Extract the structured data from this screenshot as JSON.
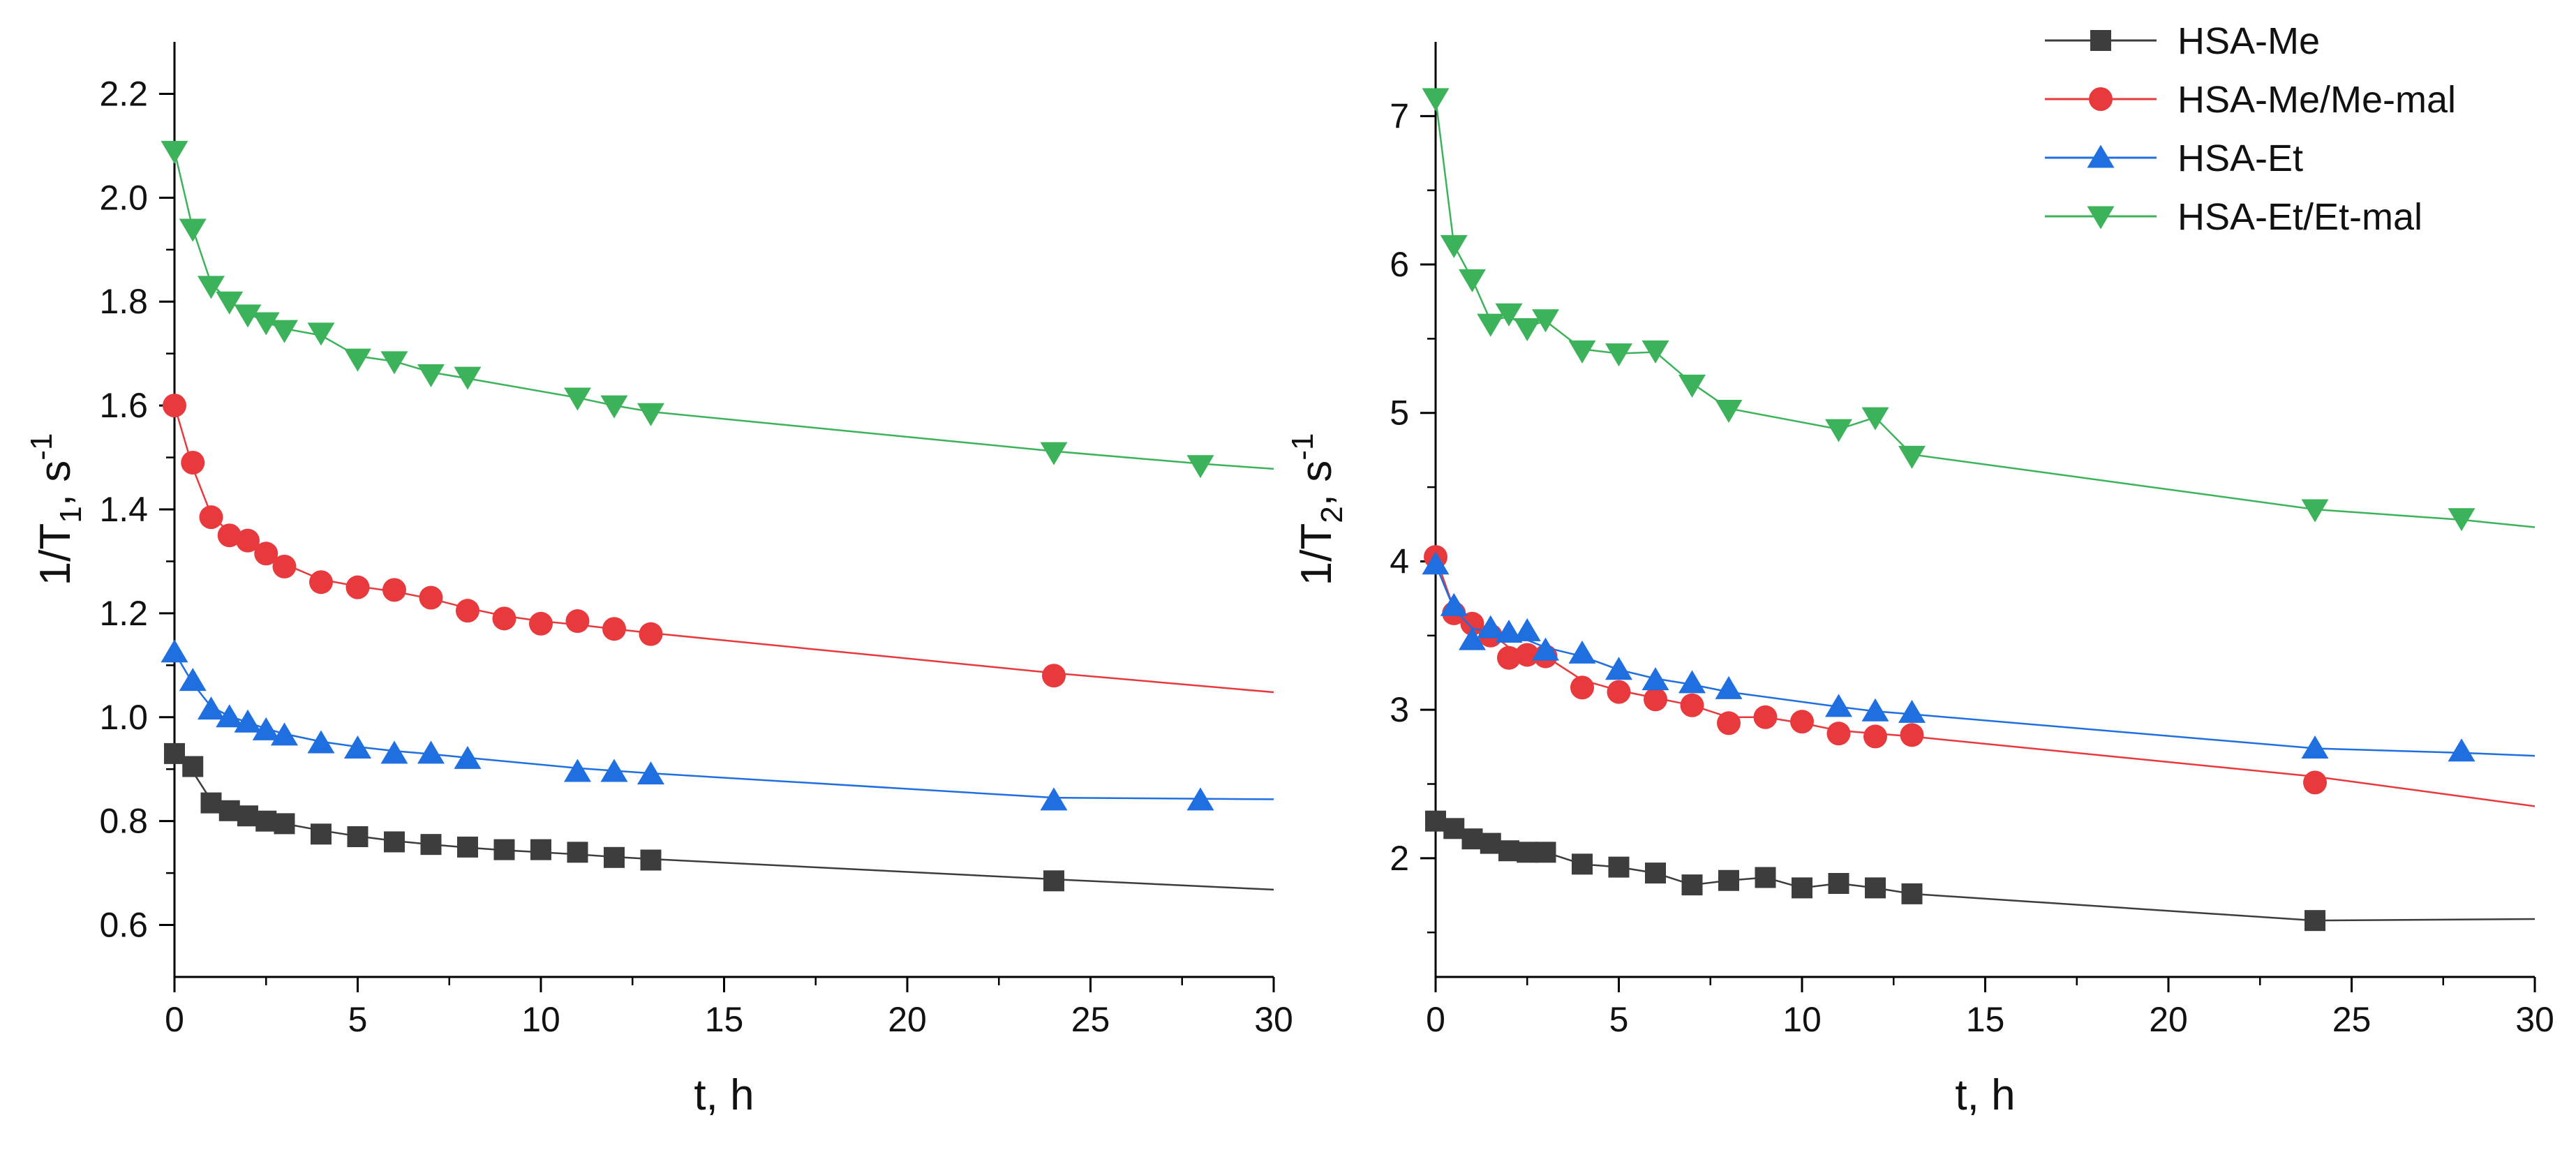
{
  "chart_data": [
    {
      "type": "line",
      "panel": "left",
      "title": "",
      "xlabel": "t, h",
      "ylabel": "1/T1, s-1",
      "ylabel_parts": {
        "main": "1/T",
        "sub": "1",
        "mid": ", s",
        "sup": "-1"
      },
      "xlim": [
        0,
        30
      ],
      "ylim": [
        0.5,
        2.3
      ],
      "xticks": [
        0,
        5,
        10,
        15,
        20,
        25,
        30
      ],
      "yticks": [
        0.6,
        0.8,
        1.0,
        1.2,
        1.4,
        1.6,
        1.8,
        2.0,
        2.2
      ],
      "ytick_labels": [
        "0.6",
        "0.8",
        "1.0",
        "1.2",
        "1.4",
        "1.6",
        "1.8",
        "2.0",
        "2.2"
      ],
      "series": [
        {
          "name": "HSA-Me",
          "color": "#3d3d3d",
          "marker": "square",
          "x": [
            0,
            0.5,
            1,
            1.5,
            2,
            2.5,
            3,
            4,
            5,
            6,
            7,
            8,
            9,
            10,
            11,
            12,
            13,
            24
          ],
          "y": [
            0.93,
            0.905,
            0.835,
            0.82,
            0.81,
            0.8,
            0.795,
            0.775,
            0.77,
            0.76,
            0.755,
            0.75,
            0.745,
            0.745,
            0.74,
            0.73,
            0.725,
            0.685
          ],
          "fit_x": [
            0,
            0.5,
            1,
            1.5,
            2,
            2.5,
            3,
            4,
            5,
            6,
            7,
            8,
            9,
            10,
            11,
            12,
            13,
            24,
            30
          ],
          "fit_y": [
            0.93,
            0.895,
            0.84,
            0.825,
            0.812,
            0.803,
            0.795,
            0.782,
            0.771,
            0.762,
            0.755,
            0.749,
            0.744,
            0.74,
            0.736,
            0.731,
            0.727,
            0.688,
            0.668
          ]
        },
        {
          "name": "HSA-Me/Me-mal",
          "color": "#e8393d",
          "marker": "circle",
          "x": [
            0,
            0.5,
            1,
            1.5,
            2,
            2.5,
            3,
            4,
            5,
            6,
            7,
            8,
            9,
            10,
            11,
            12,
            13,
            24
          ],
          "y": [
            1.6,
            1.49,
            1.385,
            1.35,
            1.34,
            1.315,
            1.29,
            1.26,
            1.25,
            1.245,
            1.23,
            1.205,
            1.19,
            1.18,
            1.185,
            1.17,
            1.16,
            1.08
          ],
          "fit_x": [
            0,
            0.5,
            1,
            1.5,
            2,
            2.5,
            3,
            4,
            5,
            6,
            7,
            8,
            9,
            10,
            11,
            12,
            13,
            24,
            30
          ],
          "fit_y": [
            1.6,
            1.48,
            1.39,
            1.355,
            1.335,
            1.315,
            1.295,
            1.265,
            1.252,
            1.242,
            1.228,
            1.21,
            1.195,
            1.185,
            1.178,
            1.17,
            1.162,
            1.085,
            1.048
          ]
        },
        {
          "name": "HSA-Et",
          "color": "#1f6fe0",
          "marker": "triangle-up",
          "x": [
            0,
            0.5,
            1,
            1.5,
            2,
            2.5,
            3,
            4,
            5,
            6,
            7,
            8,
            11,
            12,
            13,
            24,
            28
          ],
          "y": [
            1.125,
            1.07,
            1.015,
            1.0,
            0.99,
            0.975,
            0.965,
            0.95,
            0.94,
            0.93,
            0.93,
            0.92,
            0.895,
            0.895,
            0.89,
            0.84,
            0.84
          ],
          "fit_x": [
            0,
            0.5,
            1,
            1.5,
            2,
            2.5,
            3,
            4,
            5,
            6,
            7,
            8,
            11,
            12,
            13,
            24,
            28,
            30
          ],
          "fit_y": [
            1.125,
            1.065,
            1.02,
            1.002,
            0.99,
            0.978,
            0.968,
            0.953,
            0.943,
            0.935,
            0.929,
            0.922,
            0.902,
            0.897,
            0.892,
            0.845,
            0.843,
            0.842
          ]
        },
        {
          "name": "HSA-Et/Et-mal",
          "color": "#3cb35a",
          "marker": "triangle-down",
          "x": [
            0,
            0.5,
            1,
            1.5,
            2,
            2.5,
            3,
            4,
            5,
            6,
            7,
            8,
            11,
            12,
            13,
            24,
            28
          ],
          "y": [
            2.09,
            1.94,
            1.83,
            1.8,
            1.775,
            1.76,
            1.745,
            1.74,
            1.69,
            1.685,
            1.66,
            1.655,
            1.615,
            1.6,
            1.585,
            1.51,
            1.485
          ],
          "fit_x": [
            0,
            0.5,
            1,
            1.5,
            2,
            2.5,
            3,
            4,
            5,
            6,
            7,
            8,
            11,
            12,
            13,
            24,
            28,
            30
          ],
          "fit_y": [
            2.09,
            1.94,
            1.835,
            1.8,
            1.778,
            1.76,
            1.748,
            1.735,
            1.695,
            1.685,
            1.664,
            1.652,
            1.615,
            1.6,
            1.588,
            1.512,
            1.488,
            1.478
          ]
        }
      ]
    },
    {
      "type": "line",
      "panel": "right",
      "title": "",
      "xlabel": "t, h",
      "ylabel": "1/T2, s-1",
      "ylabel_parts": {
        "main": "1/T",
        "sub": "2",
        "mid": ", s",
        "sup": "-1"
      },
      "xlim": [
        0,
        30
      ],
      "ylim": [
        1.2,
        7.5
      ],
      "xticks": [
        0,
        5,
        10,
        15,
        20,
        25,
        30
      ],
      "yticks": [
        2,
        3,
        4,
        5,
        6,
        7
      ],
      "ytick_labels": [
        "2",
        "3",
        "4",
        "5",
        "6",
        "7"
      ],
      "series": [
        {
          "name": "HSA-Me",
          "color": "#3d3d3d",
          "marker": "square",
          "x": [
            0,
            0.5,
            1,
            1.5,
            2,
            2.5,
            3,
            4,
            5,
            6,
            7,
            8,
            9,
            10,
            11,
            12,
            13,
            24
          ],
          "y": [
            2.25,
            2.2,
            2.13,
            2.1,
            2.05,
            2.04,
            2.04,
            1.96,
            1.94,
            1.9,
            1.82,
            1.85,
            1.87,
            1.8,
            1.83,
            1.8,
            1.76,
            1.58
          ],
          "fit_x": [
            0,
            0.5,
            1,
            1.5,
            2,
            2.5,
            3,
            4,
            5,
            6,
            7,
            8,
            9,
            10,
            11,
            12,
            13,
            24,
            30
          ],
          "fit_y": [
            2.25,
            2.2,
            2.13,
            2.1,
            2.05,
            2.04,
            2.04,
            1.96,
            1.94,
            1.9,
            1.82,
            1.85,
            1.87,
            1.8,
            1.83,
            1.8,
            1.76,
            1.58,
            1.59
          ]
        },
        {
          "name": "HSA-Me/Me-mal",
          "color": "#e8393d",
          "marker": "circle",
          "x": [
            0,
            0.5,
            1,
            1.5,
            2,
            2.5,
            3,
            4,
            5,
            6,
            7,
            8,
            9,
            10,
            11,
            12,
            13,
            24
          ],
          "y": [
            4.03,
            3.65,
            3.58,
            3.5,
            3.35,
            3.37,
            3.36,
            3.15,
            3.12,
            3.07,
            3.03,
            2.91,
            2.95,
            2.92,
            2.84,
            2.82,
            2.83,
            2.51
          ],
          "fit_x": [
            0,
            0.5,
            1,
            1.5,
            2,
            2.5,
            3,
            4,
            5,
            6,
            7,
            8,
            9,
            10,
            11,
            12,
            13,
            24,
            30
          ],
          "fit_y": [
            4.03,
            3.68,
            3.6,
            3.52,
            3.42,
            3.39,
            3.36,
            3.2,
            3.13,
            3.08,
            3.03,
            2.95,
            2.95,
            2.91,
            2.86,
            2.84,
            2.82,
            2.55,
            2.35
          ]
        },
        {
          "name": "HSA-Et",
          "color": "#1f6fe0",
          "marker": "triangle-up",
          "x": [
            0,
            0.5,
            1,
            1.5,
            2,
            2.5,
            3,
            4,
            5,
            6,
            7,
            8,
            11,
            12,
            13,
            24,
            28
          ],
          "y": [
            3.98,
            3.7,
            3.47,
            3.55,
            3.52,
            3.53,
            3.4,
            3.38,
            3.27,
            3.2,
            3.18,
            3.14,
            3.02,
            2.99,
            2.98,
            2.74,
            2.72
          ],
          "fit_x": [
            0,
            0.5,
            1,
            1.5,
            2,
            2.5,
            3,
            4,
            5,
            6,
            7,
            8,
            11,
            12,
            13,
            24,
            28,
            30
          ],
          "fit_y": [
            3.98,
            3.68,
            3.55,
            3.52,
            3.49,
            3.47,
            3.42,
            3.36,
            3.27,
            3.21,
            3.17,
            3.12,
            3.02,
            2.99,
            2.97,
            2.74,
            2.71,
            2.69
          ]
        },
        {
          "name": "HSA-Et/Et-mal",
          "color": "#3cb35a",
          "marker": "triangle-down",
          "x": [
            0,
            0.5,
            1,
            1.5,
            2,
            2.5,
            3,
            4,
            5,
            6,
            7,
            8,
            11,
            12,
            13,
            24,
            28
          ],
          "y": [
            7.12,
            6.13,
            5.9,
            5.6,
            5.67,
            5.57,
            5.63,
            5.42,
            5.4,
            5.42,
            5.19,
            5.02,
            4.89,
            4.97,
            4.71,
            4.35,
            4.29
          ],
          "fit_x": [
            0,
            0.5,
            1,
            1.5,
            2,
            2.5,
            3,
            4,
            5,
            6,
            7,
            8,
            11,
            12,
            13,
            24,
            28,
            30
          ],
          "fit_y": [
            7.12,
            6.13,
            5.9,
            5.62,
            5.65,
            5.58,
            5.62,
            5.43,
            5.4,
            5.41,
            5.2,
            5.03,
            4.89,
            4.97,
            4.72,
            4.35,
            4.28,
            4.23
          ]
        }
      ]
    }
  ],
  "legend": {
    "placement": "top-right",
    "items": [
      {
        "label": "HSA-Me",
        "color": "#3d3d3d",
        "marker": "square"
      },
      {
        "label": "HSA-Me/Me-mal",
        "color": "#e8393d",
        "marker": "circle"
      },
      {
        "label": "HSA-Et",
        "color": "#1f6fe0",
        "marker": "triangle-up"
      },
      {
        "label": "HSA-Et/Et-mal",
        "color": "#3cb35a",
        "marker": "triangle-down"
      }
    ]
  }
}
